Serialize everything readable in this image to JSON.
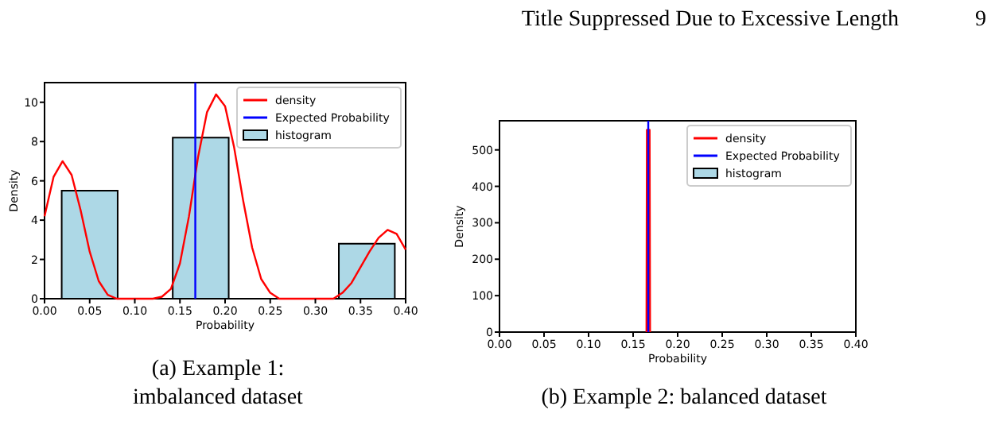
{
  "chart_data": [
    {
      "type": "histogram",
      "xlabel": "Probability",
      "ylabel": "Density",
      "xlim": [
        0,
        0.4
      ],
      "ylim": [
        0,
        11
      ],
      "xticks": [
        {
          "value": 0,
          "label": "0.00"
        },
        {
          "value": 0.05,
          "label": "0.05"
        },
        {
          "value": 0.1,
          "label": "0.10"
        },
        {
          "value": 0.15,
          "label": "0.15"
        },
        {
          "value": 0.2,
          "label": "0.20"
        },
        {
          "value": 0.25,
          "label": "0.25"
        },
        {
          "value": 0.3,
          "label": "0.30"
        },
        {
          "value": 0.35,
          "label": "0.35"
        },
        {
          "value": 0.4,
          "label": "0.40"
        }
      ],
      "yticks": [
        0,
        2,
        4,
        6,
        8,
        10
      ],
      "legend": "top right",
      "grid": false,
      "annotations": [
        "Title Suppressed Due to Excessive Length",
        "9",
        "(a) Example 1: imbalanced dataset"
      ],
      "series": [
        {
          "name": "histogram",
          "type": "histogram",
          "color": "#add8e6",
          "bins": [
            0.019,
            0.081,
            0.142,
            0.204,
            0.326,
            0.388
          ],
          "values": [
            5.5,
            0,
            8.2,
            0,
            2.8
          ]
        },
        {
          "name": "Expected Probability",
          "type": "line",
          "color": "#0000ff",
          "x": [
            0.167,
            0.167
          ],
          "values": [
            0,
            11
          ]
        },
        {
          "name": "density",
          "type": "line",
          "color": "#ff0000",
          "x": [
            0,
            0.01,
            0.02,
            0.03,
            0.04,
            0.05,
            0.06,
            0.07,
            0.08,
            0.1,
            0.12,
            0.13,
            0.14,
            0.15,
            0.16,
            0.17,
            0.18,
            0.19,
            0.2,
            0.21,
            0.22,
            0.23,
            0.24,
            0.25,
            0.26,
            0.28,
            0.3,
            0.32,
            0.33,
            0.34,
            0.35,
            0.36,
            0.37,
            0.38,
            0.39,
            0.4
          ],
          "values": [
            4.2,
            6.2,
            7.0,
            6.3,
            4.5,
            2.4,
            0.9,
            0.2,
            0,
            0,
            0,
            0.1,
            0.5,
            1.8,
            4.2,
            7.2,
            9.5,
            10.4,
            9.8,
            7.7,
            5.0,
            2.6,
            1.0,
            0.3,
            0,
            0,
            0,
            0,
            0.3,
            0.8,
            1.6,
            2.4,
            3.1,
            3.5,
            3.3,
            2.5
          ]
        }
      ]
    },
    {
      "type": "histogram",
      "xlabel": "Probability",
      "ylabel": "Density",
      "xlim": [
        0,
        0.4
      ],
      "ylim": [
        0,
        580
      ],
      "xticks": [
        {
          "value": 0,
          "label": "0.00"
        },
        {
          "value": 0.05,
          "label": "0.05"
        },
        {
          "value": 0.1,
          "label": "0.10"
        },
        {
          "value": 0.15,
          "label": "0.15"
        },
        {
          "value": 0.2,
          "label": "0.20"
        },
        {
          "value": 0.25,
          "label": "0.25"
        },
        {
          "value": 0.3,
          "label": "0.30"
        },
        {
          "value": 0.35,
          "label": "0.35"
        },
        {
          "value": 0.4,
          "label": "0.40"
        }
      ],
      "yticks": [
        0,
        100,
        200,
        300,
        400,
        500
      ],
      "legend": "top right",
      "grid": false,
      "annotations": [
        "(b) Example 2: balanced dataset"
      ],
      "series": [
        {
          "name": "histogram",
          "type": "histogram",
          "color": "#add8e6"
        },
        {
          "name": "Expected Probability",
          "type": "line",
          "color": "#0000ff",
          "x": [
            0.167,
            0.167
          ],
          "values": [
            0,
            580
          ]
        },
        {
          "name": "density",
          "type": "line",
          "color": "#ff0000",
          "x": [
            0.165,
            0.1655,
            0.1685,
            0.169
          ],
          "values": [
            0,
            555,
            555,
            0
          ]
        }
      ]
    }
  ]
}
